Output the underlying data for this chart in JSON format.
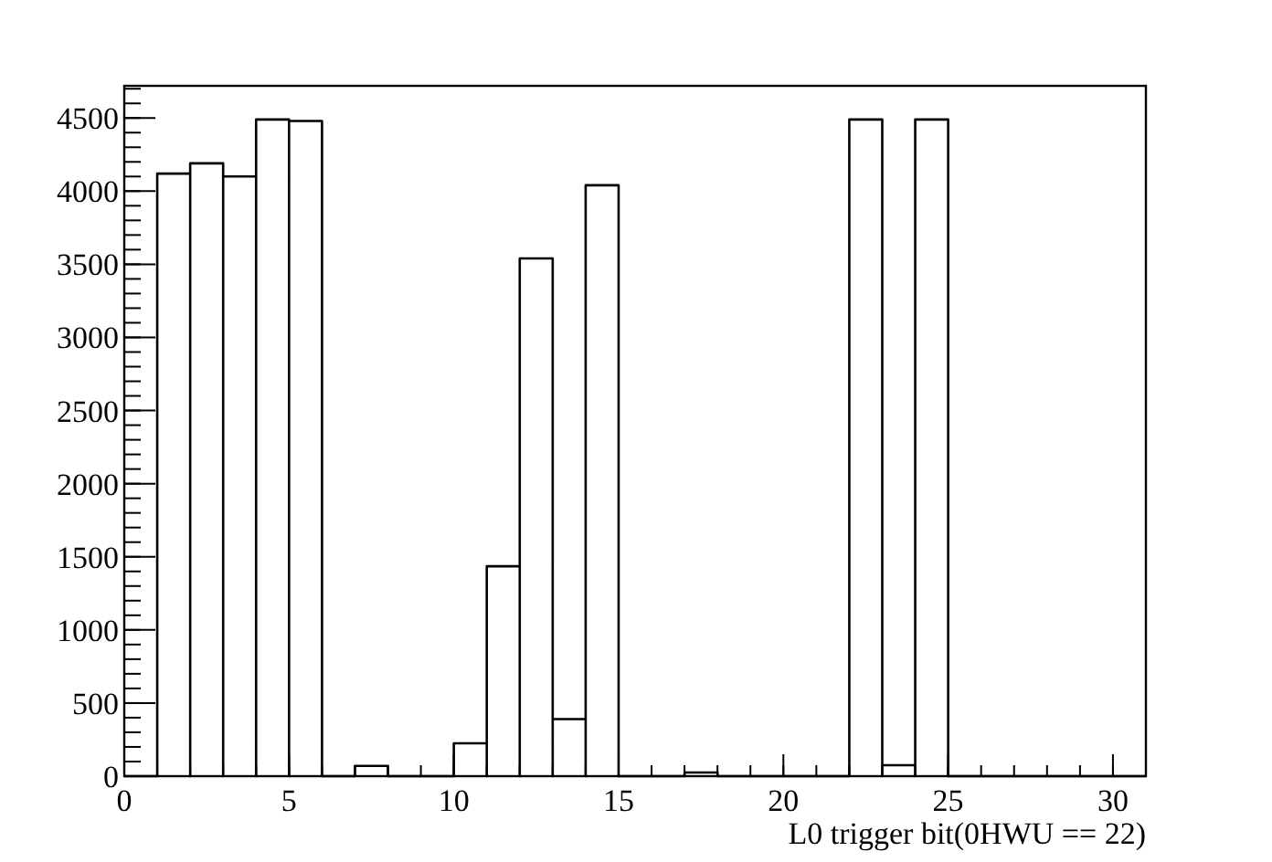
{
  "chart_data": {
    "type": "histogram",
    "xlabel": "L0 trigger bit(0HWU == 22)",
    "bins": [
      0,
      1,
      2,
      3,
      4,
      5,
      6,
      7,
      8,
      9,
      10,
      11,
      12,
      13,
      14,
      15,
      16,
      17,
      18,
      19,
      20,
      21,
      22,
      23,
      24,
      25,
      26,
      27,
      28,
      29,
      30,
      31
    ],
    "values": [
      0,
      4120,
      4190,
      4100,
      4490,
      4480,
      0,
      70,
      0,
      0,
      225,
      1435,
      3540,
      390,
      4040,
      0,
      0,
      25,
      0,
      0,
      0,
      0,
      4490,
      75,
      4490,
      0,
      0,
      0,
      0,
      0,
      0
    ],
    "color": "#000000",
    "xlim": [
      0,
      31
    ],
    "ylim": [
      0,
      4720
    ],
    "xticks": [
      0,
      5,
      10,
      15,
      20,
      25,
      30
    ],
    "yticks": [
      0,
      500,
      1000,
      1500,
      2000,
      2500,
      3000,
      3500,
      4000,
      4500
    ],
    "grid": false
  }
}
